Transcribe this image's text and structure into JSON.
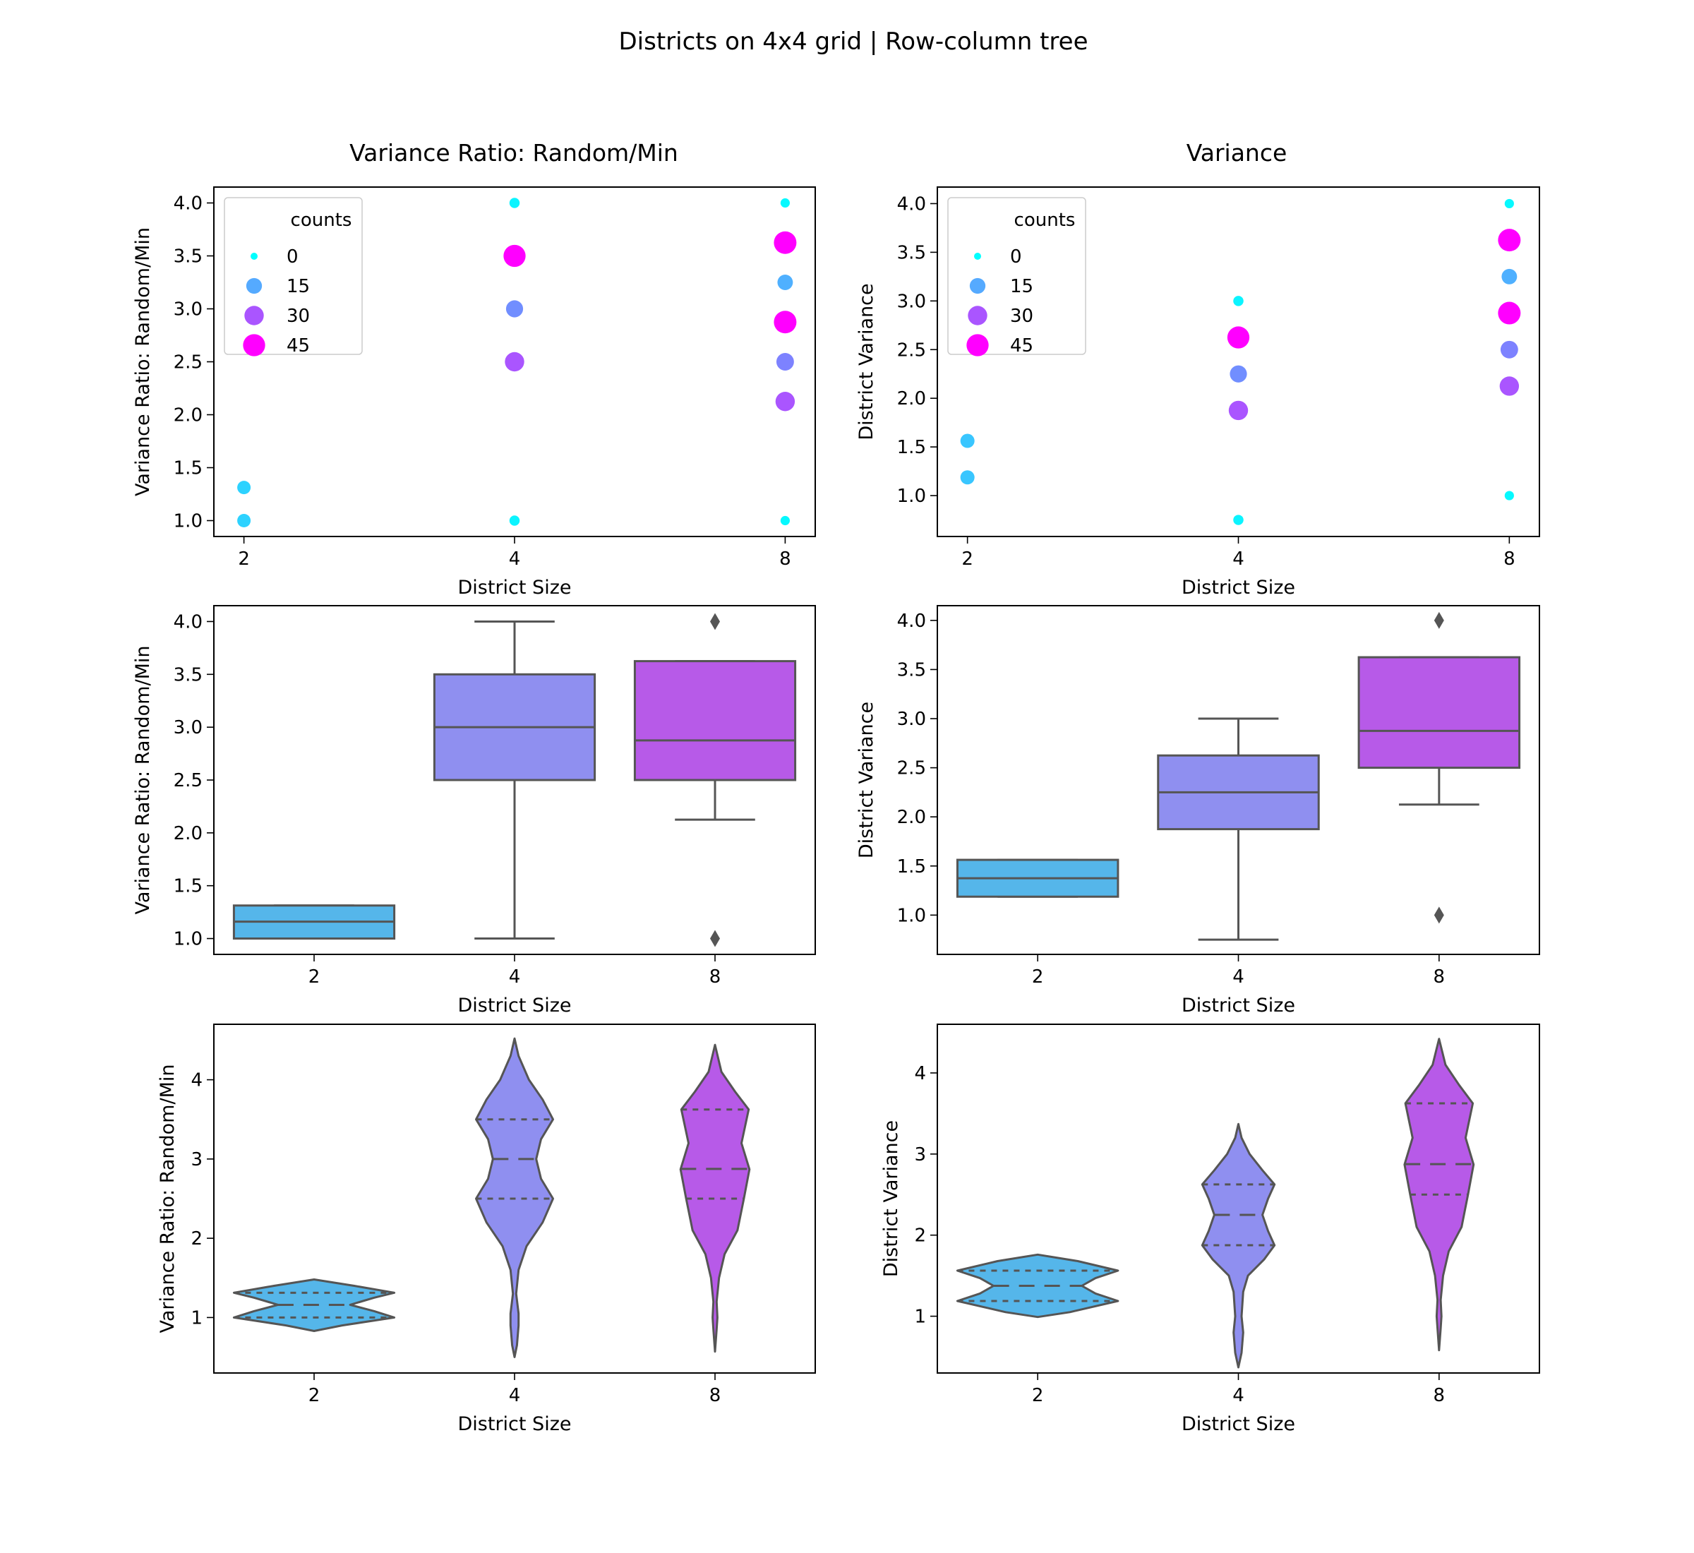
{
  "figure": {
    "title": "Districts on 4x4 grid | Row-column tree"
  },
  "columns": [
    {
      "title": "Variance Ratio: Random/Min"
    },
    {
      "title": "Variance"
    }
  ],
  "colors": {
    "axis": "#000000",
    "line": "#555555",
    "box_2": "#55b6ea",
    "box_4": "#8f8ff0",
    "box_8": "#b75ae8",
    "hue": [
      "#00ffff",
      "#55aaff",
      "#aa55ff",
      "#ff00ff"
    ]
  },
  "chart_data": [
    {
      "type": "scatter",
      "panel": "row1-col1",
      "xlabel": "District Size",
      "ylabel": "Variance Ratio: Random/Min",
      "x_categories": [
        "2",
        "4",
        "8"
      ],
      "ylim": [
        0.85,
        4.15
      ],
      "yticks": [
        1.0,
        1.5,
        2.0,
        2.5,
        3.0,
        3.5,
        4.0
      ],
      "ytick_labels": [
        "1.0",
        "1.5",
        "2.0",
        "2.5",
        "3.0",
        "3.5",
        "4.0"
      ],
      "legend": {
        "title": "counts",
        "placement": "upper-left",
        "entries": [
          "0",
          "15",
          "30",
          "45"
        ],
        "values": [
          0,
          15,
          30,
          45
        ]
      },
      "points": [
        {
          "x": "2",
          "y": 1.0,
          "count": 8
        },
        {
          "x": "2",
          "y": 1.3125,
          "count": 8
        },
        {
          "x": "4",
          "y": 1.0,
          "count": 2
        },
        {
          "x": "4",
          "y": 2.5,
          "count": 30
        },
        {
          "x": "4",
          "y": 3.0,
          "count": 20
        },
        {
          "x": "4",
          "y": 3.5,
          "count": 45
        },
        {
          "x": "4",
          "y": 4.0,
          "count": 2
        },
        {
          "x": "8",
          "y": 1.0,
          "count": 1
        },
        {
          "x": "8",
          "y": 2.125,
          "count": 30
        },
        {
          "x": "8",
          "y": 2.5,
          "count": 22
        },
        {
          "x": "8",
          "y": 2.875,
          "count": 48
        },
        {
          "x": "8",
          "y": 3.25,
          "count": 14
        },
        {
          "x": "8",
          "y": 3.625,
          "count": 48
        },
        {
          "x": "8",
          "y": 4.0,
          "count": 1
        }
      ]
    },
    {
      "type": "scatter",
      "panel": "row1-col2",
      "xlabel": "District Size",
      "ylabel": "District Variance",
      "x_categories": [
        "2",
        "4",
        "8"
      ],
      "ylim": [
        0.58,
        4.17
      ],
      "yticks": [
        1.0,
        1.5,
        2.0,
        2.5,
        3.0,
        3.5,
        4.0
      ],
      "ytick_labels": [
        "1.0",
        "1.5",
        "2.0",
        "2.5",
        "3.0",
        "3.5",
        "4.0"
      ],
      "legend": {
        "title": "counts",
        "placement": "upper-left",
        "entries": [
          "0",
          "15",
          "30",
          "45"
        ],
        "values": [
          0,
          15,
          30,
          45
        ]
      },
      "points": [
        {
          "x": "2",
          "y": 1.1875,
          "count": 10
        },
        {
          "x": "2",
          "y": 1.5625,
          "count": 10
        },
        {
          "x": "4",
          "y": 0.75,
          "count": 2
        },
        {
          "x": "4",
          "y": 1.875,
          "count": 30
        },
        {
          "x": "4",
          "y": 2.25,
          "count": 20
        },
        {
          "x": "4",
          "y": 2.625,
          "count": 45
        },
        {
          "x": "4",
          "y": 3.0,
          "count": 2
        },
        {
          "x": "8",
          "y": 1.0,
          "count": 1
        },
        {
          "x": "8",
          "y": 2.125,
          "count": 30
        },
        {
          "x": "8",
          "y": 2.5,
          "count": 22
        },
        {
          "x": "8",
          "y": 2.875,
          "count": 48
        },
        {
          "x": "8",
          "y": 3.25,
          "count": 14
        },
        {
          "x": "8",
          "y": 3.625,
          "count": 48
        },
        {
          "x": "8",
          "y": 4.0,
          "count": 1
        }
      ]
    },
    {
      "type": "box",
      "panel": "row2-col1",
      "xlabel": "District Size",
      "ylabel": "Variance Ratio: Random/Min",
      "categories": [
        "2",
        "4",
        "8"
      ],
      "ylim": [
        0.85,
        4.15
      ],
      "yticks": [
        1.0,
        1.5,
        2.0,
        2.5,
        3.0,
        3.5,
        4.0
      ],
      "ytick_labels": [
        "1.0",
        "1.5",
        "2.0",
        "2.5",
        "3.0",
        "3.5",
        "4.0"
      ],
      "boxes": [
        {
          "category": "2",
          "whislo": 1.0,
          "q1": 1.0,
          "med": 1.16,
          "q3": 1.3125,
          "whishi": 1.3125,
          "fliers": []
        },
        {
          "category": "4",
          "whislo": 1.0,
          "q1": 2.5,
          "med": 3.0,
          "q3": 3.5,
          "whishi": 4.0,
          "fliers": []
        },
        {
          "category": "8",
          "whislo": 2.125,
          "q1": 2.5,
          "med": 2.875,
          "q3": 3.625,
          "whishi": 3.625,
          "fliers": [
            1.0,
            4.0
          ]
        }
      ]
    },
    {
      "type": "box",
      "panel": "row2-col2",
      "xlabel": "District Size",
      "ylabel": "District Variance",
      "categories": [
        "2",
        "4",
        "8"
      ],
      "ylim": [
        0.6,
        4.15
      ],
      "yticks": [
        1.0,
        1.5,
        2.0,
        2.5,
        3.0,
        3.5,
        4.0
      ],
      "ytick_labels": [
        "1.0",
        "1.5",
        "2.0",
        "2.5",
        "3.0",
        "3.5",
        "4.0"
      ],
      "boxes": [
        {
          "category": "2",
          "whislo": 1.1875,
          "q1": 1.1875,
          "med": 1.375,
          "q3": 1.5625,
          "whishi": 1.5625,
          "fliers": []
        },
        {
          "category": "4",
          "whislo": 0.75,
          "q1": 1.875,
          "med": 2.25,
          "q3": 2.625,
          "whishi": 3.0,
          "fliers": []
        },
        {
          "category": "8",
          "whislo": 2.125,
          "q1": 2.5,
          "med": 2.875,
          "q3": 3.625,
          "whishi": 3.625,
          "fliers": [
            1.0,
            4.0
          ]
        }
      ]
    },
    {
      "type": "violin",
      "panel": "row3-col1",
      "xlabel": "District Size",
      "ylabel": "Variance Ratio: Random/Min",
      "categories": [
        "2",
        "4",
        "8"
      ],
      "ylim": [
        0.3,
        4.7
      ],
      "yticks": [
        1,
        2,
        3,
        4
      ],
      "ytick_labels": [
        "1",
        "2",
        "3",
        "4"
      ],
      "violins": [
        {
          "category": "2",
          "q1": 1.0,
          "med": 1.16,
          "q3": 1.3125,
          "profile": [
            [
              0.83,
              0.0
            ],
            [
              0.9,
              0.35
            ],
            [
              1.0,
              1.0
            ],
            [
              1.08,
              0.75
            ],
            [
              1.16,
              0.45
            ],
            [
              1.25,
              0.75
            ],
            [
              1.3125,
              1.0
            ],
            [
              1.4,
              0.5
            ],
            [
              1.48,
              0.0
            ]
          ]
        },
        {
          "category": "4",
          "q1": 2.5,
          "med": 3.0,
          "q3": 3.5,
          "profile": [
            [
              0.5,
              0.0
            ],
            [
              0.65,
              0.03
            ],
            [
              0.9,
              0.05
            ],
            [
              1.05,
              0.05
            ],
            [
              1.3,
              0.02
            ],
            [
              1.6,
              0.05
            ],
            [
              1.9,
              0.15
            ],
            [
              2.2,
              0.35
            ],
            [
              2.5,
              0.48
            ],
            [
              2.75,
              0.33
            ],
            [
              3.0,
              0.27
            ],
            [
              3.25,
              0.33
            ],
            [
              3.5,
              0.48
            ],
            [
              3.75,
              0.35
            ],
            [
              4.0,
              0.18
            ],
            [
              4.3,
              0.05
            ],
            [
              4.52,
              0.0
            ]
          ]
        },
        {
          "category": "8",
          "q1": 2.5,
          "med": 2.875,
          "q3": 3.625,
          "profile": [
            [
              0.57,
              0.0
            ],
            [
              0.85,
              0.02
            ],
            [
              1.0,
              0.03
            ],
            [
              1.2,
              0.02
            ],
            [
              1.5,
              0.05
            ],
            [
              1.8,
              0.12
            ],
            [
              2.1,
              0.28
            ],
            [
              2.5,
              0.36
            ],
            [
              2.87,
              0.43
            ],
            [
              3.2,
              0.33
            ],
            [
              3.625,
              0.42
            ],
            [
              3.85,
              0.25
            ],
            [
              4.1,
              0.08
            ],
            [
              4.44,
              0.0
            ]
          ]
        }
      ]
    },
    {
      "type": "violin",
      "panel": "row3-col2",
      "xlabel": "District Size",
      "ylabel": "District Variance",
      "categories": [
        "2",
        "4",
        "8"
      ],
      "ylim": [
        0.3,
        4.6
      ],
      "yticks": [
        1,
        2,
        3,
        4
      ],
      "ytick_labels": [
        "1",
        "2",
        "3",
        "4"
      ],
      "violins": [
        {
          "category": "2",
          "q1": 1.1875,
          "med": 1.375,
          "q3": 1.5625,
          "profile": [
            [
              0.99,
              0.0
            ],
            [
              1.05,
              0.4
            ],
            [
              1.1875,
              1.0
            ],
            [
              1.28,
              0.72
            ],
            [
              1.375,
              0.55
            ],
            [
              1.47,
              0.72
            ],
            [
              1.5625,
              1.0
            ],
            [
              1.68,
              0.5
            ],
            [
              1.76,
              0.0
            ]
          ]
        },
        {
          "category": "4",
          "q1": 1.875,
          "med": 2.25,
          "q3": 2.625,
          "profile": [
            [
              0.37,
              0.0
            ],
            [
              0.55,
              0.04
            ],
            [
              0.8,
              0.06
            ],
            [
              1.0,
              0.04
            ],
            [
              1.3,
              0.06
            ],
            [
              1.5,
              0.12
            ],
            [
              1.7,
              0.32
            ],
            [
              1.875,
              0.45
            ],
            [
              2.05,
              0.37
            ],
            [
              2.25,
              0.3
            ],
            [
              2.45,
              0.37
            ],
            [
              2.625,
              0.45
            ],
            [
              2.8,
              0.3
            ],
            [
              3.0,
              0.14
            ],
            [
              3.2,
              0.04
            ],
            [
              3.37,
              0.0
            ]
          ]
        },
        {
          "category": "8",
          "q1": 2.5,
          "med": 2.875,
          "q3": 3.625,
          "profile": [
            [
              0.58,
              0.0
            ],
            [
              0.85,
              0.02
            ],
            [
              1.0,
              0.03
            ],
            [
              1.2,
              0.02
            ],
            [
              1.5,
              0.05
            ],
            [
              1.8,
              0.12
            ],
            [
              2.1,
              0.28
            ],
            [
              2.5,
              0.36
            ],
            [
              2.87,
              0.43
            ],
            [
              3.2,
              0.33
            ],
            [
              3.625,
              0.42
            ],
            [
              3.85,
              0.25
            ],
            [
              4.1,
              0.08
            ],
            [
              4.42,
              0.0
            ]
          ]
        }
      ]
    }
  ]
}
